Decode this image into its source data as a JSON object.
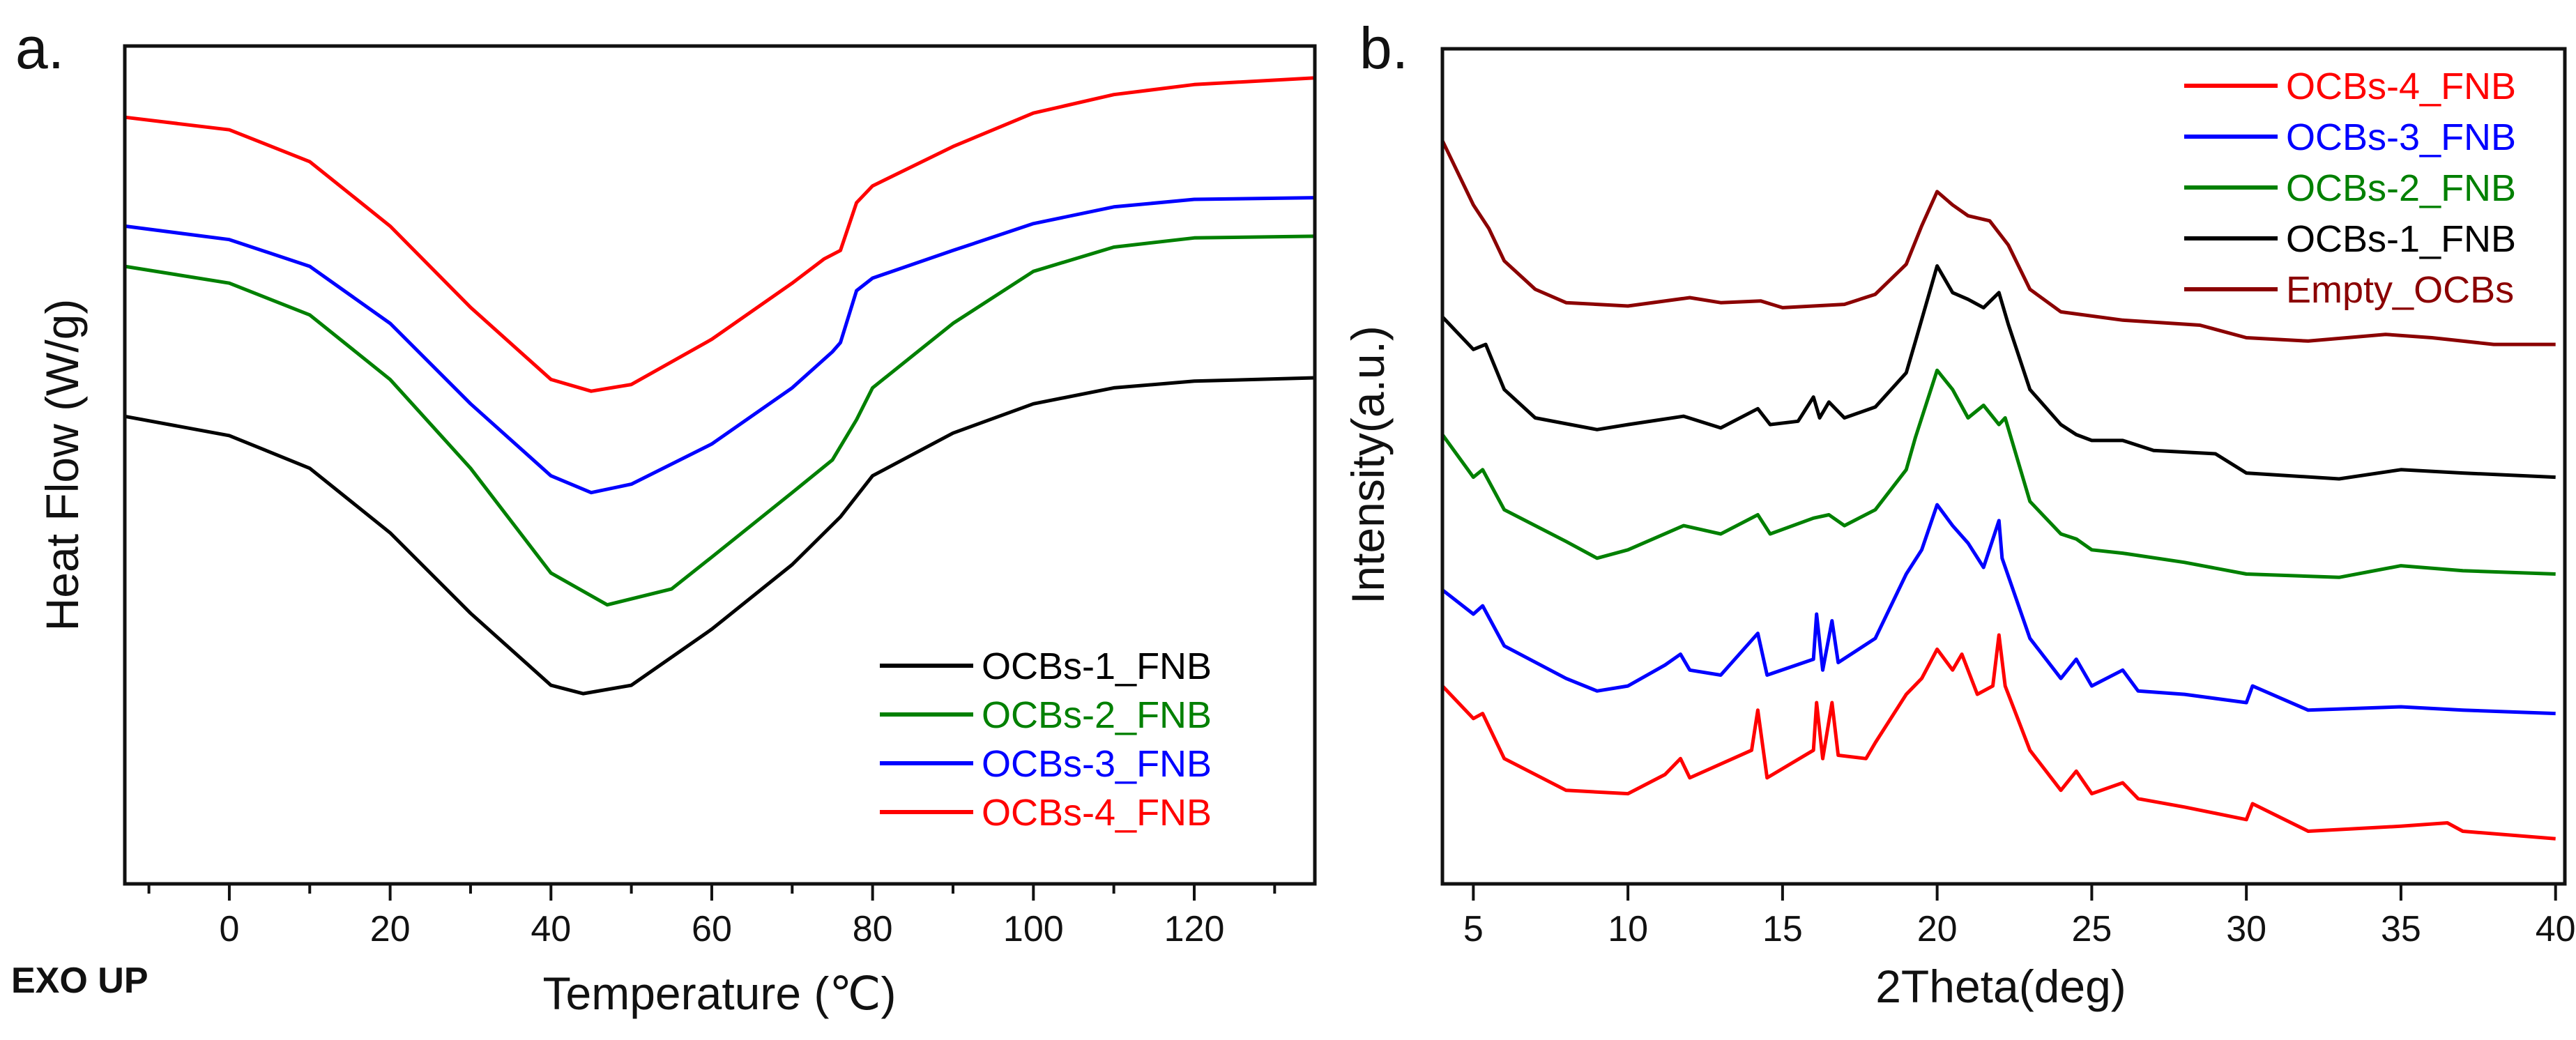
{
  "chart_data": [
    {
      "type": "line",
      "panel_label": "a.",
      "title": "",
      "xlabel": "Temperature (℃)",
      "ylabel": "Heat Flow (W/g)",
      "annotation": "EXO UP",
      "xlim": [
        -13,
        135
      ],
      "ylim": [
        0,
        100
      ],
      "y_units_note": "relative (no y tick labels)",
      "xticks": [
        0,
        20,
        40,
        60,
        80,
        100,
        120
      ],
      "xminor_ticks": [
        -10,
        10,
        30,
        50,
        70,
        90,
        110,
        130
      ],
      "grid": false,
      "legend_position": "bottom-right",
      "series": [
        {
          "name": "OCBs-1_FNB",
          "color": "#000000",
          "x": [
            -13,
            0,
            10,
            20,
            30,
            40,
            44,
            50,
            60,
            70,
            76,
            80,
            90,
            100,
            110,
            120,
            135
          ],
          "y": [
            55.8,
            53.5,
            49.6,
            41.9,
            32.3,
            23.7,
            22.7,
            23.7,
            30.4,
            38.1,
            43.8,
            48.7,
            53.8,
            57.3,
            59.2,
            60,
            60.4
          ]
        },
        {
          "name": "OCBs-2_FNB",
          "color": "#008000",
          "x": [
            -13,
            0,
            10,
            20,
            30,
            40,
            47,
            55,
            60,
            70,
            75,
            78,
            80,
            90,
            100,
            110,
            120,
            135
          ],
          "y": [
            73.7,
            71.7,
            67.9,
            60.2,
            49.6,
            37.1,
            33.3,
            35.2,
            39,
            46.7,
            50.6,
            55.4,
            59.2,
            66.9,
            73.1,
            76,
            77.1,
            77.3
          ]
        },
        {
          "name": "OCBs-3_FNB",
          "color": "#0000ff",
          "x": [
            -13,
            0,
            10,
            20,
            30,
            40,
            45,
            50,
            60,
            70,
            75,
            76,
            78,
            80,
            90,
            100,
            110,
            120,
            135
          ],
          "y": [
            78.5,
            76.9,
            73.7,
            66.9,
            57.3,
            48.7,
            46.7,
            47.7,
            52.5,
            59.2,
            63.5,
            64.6,
            70.8,
            72.3,
            75.6,
            78.8,
            80.8,
            81.7,
            81.9
          ]
        },
        {
          "name": "OCBs-4_FNB",
          "color": "#ff0000",
          "x": [
            -13,
            0,
            10,
            20,
            30,
            40,
            45,
            50,
            60,
            70,
            74,
            76,
            78,
            80,
            90,
            100,
            110,
            120,
            135
          ],
          "y": [
            91.5,
            90,
            86.2,
            78.5,
            68.8,
            60.2,
            58.8,
            59.6,
            65,
            71.7,
            74.6,
            75.6,
            81.3,
            83.3,
            88,
            92,
            94.2,
            95.4,
            96.2
          ]
        }
      ]
    },
    {
      "type": "line",
      "panel_label": "b.",
      "title": "",
      "xlabel": "2Theta(deg)",
      "ylabel": "Intensity(a.u.)",
      "xlim": [
        4,
        40.3
      ],
      "ylim": [
        0,
        100
      ],
      "y_units_note": "relative (no y tick labels)",
      "xticks": [
        5,
        10,
        15,
        20,
        25,
        30,
        35,
        40
      ],
      "grid": false,
      "legend_position": "top-right",
      "series": [
        {
          "name": "OCBs-4_FNB",
          "color": "#ff0000",
          "x": [
            4,
            5,
            5.3,
            6,
            8,
            10,
            11.2,
            11.7,
            12,
            14,
            14.2,
            14.5,
            16,
            16.1,
            16.3,
            16.6,
            16.8,
            17.7,
            18,
            19,
            19.5,
            20,
            20.5,
            20.8,
            21.3,
            21.8,
            22,
            22.2,
            23,
            24,
            24.5,
            25,
            26,
            26.5,
            28,
            30,
            30.2,
            32,
            35,
            36.5,
            37,
            40
          ],
          "y": [
            23.7,
            19.8,
            20.4,
            15,
            11.2,
            10.8,
            13.1,
            15,
            12.7,
            16,
            20.8,
            12.7,
            16,
            21.7,
            15,
            21.7,
            15.4,
            15,
            16.9,
            22.7,
            24.6,
            28.1,
            25.6,
            27.5,
            22.7,
            23.7,
            29.8,
            23.7,
            16,
            11.2,
            13.5,
            10.8,
            12.1,
            10.2,
            9.2,
            7.7,
            9.6,
            6.3,
            6.9,
            7.3,
            6.3,
            5.4
          ]
        },
        {
          "name": "OCBs-3_FNB",
          "color": "#0000ff",
          "x": [
            4,
            5,
            5.3,
            6,
            8,
            9,
            10,
            11.2,
            11.7,
            12,
            13,
            14.2,
            14.5,
            16,
            16.1,
            16.3,
            16.6,
            16.8,
            18,
            19,
            19.5,
            20,
            20.5,
            21,
            21.5,
            22,
            22.1,
            23,
            24,
            24.5,
            25,
            26,
            26.5,
            28,
            30,
            30.2,
            32,
            35,
            37,
            40
          ],
          "y": [
            35.2,
            32.3,
            33.3,
            28.5,
            24.6,
            23.1,
            23.7,
            26.2,
            27.5,
            25.6,
            25,
            30,
            25,
            26.9,
            32.3,
            25.6,
            31.5,
            26.5,
            29.4,
            37.1,
            40,
            45.4,
            42.9,
            40.8,
            37.9,
            43.5,
            39,
            29.4,
            24.6,
            26.9,
            23.7,
            25.6,
            23.1,
            22.7,
            21.7,
            23.7,
            20.8,
            21.2,
            20.8,
            20.4
          ]
        },
        {
          "name": "OCBs-2_FNB",
          "color": "#008000",
          "x": [
            4,
            5,
            5.3,
            6,
            8,
            9,
            10,
            11.8,
            13,
            14.2,
            14.6,
            16,
            16.5,
            17,
            18,
            19,
            19.3,
            20,
            20.5,
            21,
            21.5,
            22,
            22.2,
            23,
            24,
            24.5,
            25,
            26,
            28,
            30,
            33,
            35,
            37,
            40
          ],
          "y": [
            53.8,
            48.7,
            49.6,
            44.8,
            41,
            39,
            40,
            42.9,
            41.9,
            44.2,
            41.9,
            43.8,
            44.2,
            42.9,
            44.8,
            49.6,
            53.5,
            61.5,
            59.2,
            55.8,
            57.3,
            55,
            55.8,
            45.8,
            41.9,
            41.3,
            40,
            39.6,
            38.5,
            37.1,
            36.7,
            38.1,
            37.5,
            37.1
          ]
        },
        {
          "name": "OCBs-1_FNB",
          "color": "#000000",
          "x": [
            4,
            5,
            5.4,
            6,
            7,
            9,
            10,
            11.8,
            13,
            14.2,
            14.6,
            15.5,
            16,
            16.2,
            16.5,
            17,
            18,
            19,
            19.3,
            20,
            20.5,
            21,
            21.5,
            22,
            22.3,
            23,
            24,
            24.5,
            25,
            26,
            27,
            29,
            30,
            33,
            35,
            37,
            40
          ],
          "y": [
            67.9,
            64,
            64.6,
            59.2,
            55.8,
            54.4,
            55,
            56,
            54.6,
            56.9,
            55,
            55.4,
            58.3,
            55.8,
            57.7,
            55.8,
            57.1,
            61.2,
            65,
            74,
            70.8,
            70,
            69,
            70.8,
            67,
            59.2,
            55,
            53.8,
            53.1,
            53.1,
            51.9,
            51.5,
            49.2,
            48.5,
            49.6,
            49.2,
            48.7
          ]
        },
        {
          "name": "Empty_OCBs",
          "color": "#8b0000",
          "x": [
            4,
            5,
            5.5,
            6,
            7,
            8,
            10,
            12,
            13,
            14.3,
            15,
            17,
            18,
            19,
            19.5,
            20,
            20.5,
            21,
            21.7,
            22.3,
            23,
            24,
            26,
            28.5,
            30,
            32,
            34.5,
            36,
            38,
            40
          ],
          "y": [
            89,
            81.3,
            78.5,
            74.6,
            71.2,
            69.6,
            69.2,
            70.2,
            69.6,
            69.8,
            69,
            69.4,
            70.6,
            74.2,
            78.8,
            82.9,
            81.3,
            80,
            79.4,
            76.5,
            71.2,
            68.5,
            67.5,
            66.9,
            65.4,
            65,
            65.8,
            65.4,
            64.6,
            64.6
          ]
        }
      ]
    }
  ]
}
